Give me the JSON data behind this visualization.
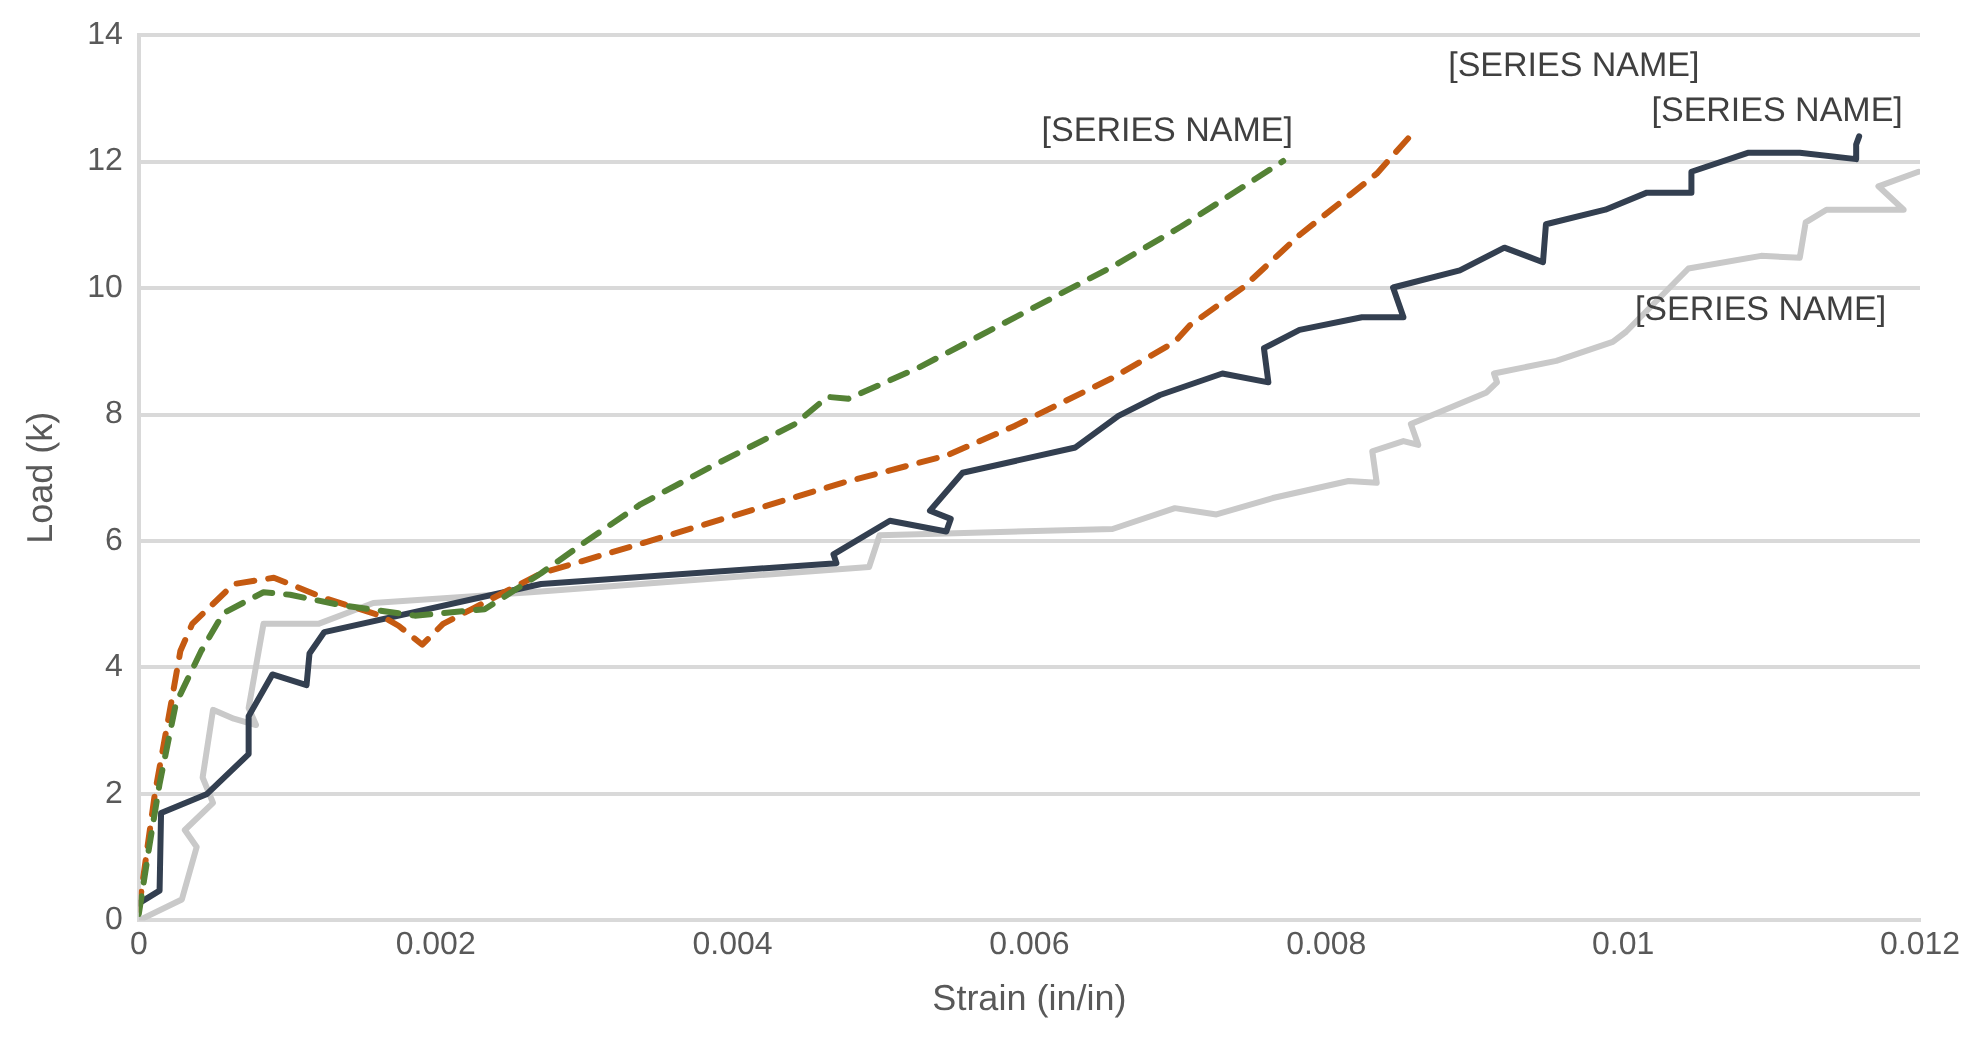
{
  "chart_data": {
    "type": "line",
    "xlabel": "Strain (in/in)",
    "ylabel": "Load (k)",
    "xlim": [
      0,
      0.012
    ],
    "xticks": [
      0,
      0.002,
      0.004,
      0.006,
      0.008,
      0.01,
      0.012
    ],
    "ylim": [
      0,
      14
    ],
    "yticks": [
      0,
      2,
      4,
      6,
      8,
      10,
      12,
      14
    ],
    "grid": "y",
    "legend": false,
    "marker": "none",
    "series": [
      {
        "name": "[SERIES NAME]",
        "color": "#c9c9c9",
        "line_style": "solid",
        "x": [
          0,
          0.00029,
          0.00039,
          0.00031,
          0.0005,
          0.00043,
          0.0005,
          0.00064,
          0.00079,
          0.00074,
          0.00084,
          0.00121,
          0.00158,
          0.00264,
          0.00492,
          0.00499,
          0.00544,
          0.00656,
          0.00698,
          0.00726,
          0.00764,
          0.00815,
          0.00834,
          0.00831,
          0.00852,
          0.00862,
          0.00857,
          0.00908,
          0.00915,
          0.00913,
          0.00955,
          0.00993,
          0.01002,
          0.01044,
          0.01093,
          0.01119,
          0.01123,
          0.01137,
          0.01189,
          0.01172,
          0.01199
        ],
        "values": [
          0,
          0.33,
          1.16,
          1.43,
          1.86,
          2.26,
          3.33,
          3.19,
          3.09,
          3.36,
          4.69,
          4.69,
          5.02,
          5.19,
          5.59,
          6.09,
          6.12,
          6.19,
          6.52,
          6.42,
          6.68,
          6.95,
          6.92,
          7.42,
          7.58,
          7.52,
          7.85,
          8.35,
          8.51,
          8.65,
          8.85,
          9.15,
          9.31,
          10.31,
          10.51,
          10.48,
          11.04,
          11.24,
          11.24,
          11.61,
          11.84
        ]
      },
      {
        "name": "[SERIES NAME]",
        "color": "#333f50",
        "line_style": "solid",
        "x": [
          0,
          0.00014,
          0.00015,
          0.00046,
          0.00074,
          0.00074,
          0.0009,
          0.00113,
          0.00115,
          0.00125,
          0.00271,
          0.0047,
          0.00468,
          0.00506,
          0.00544,
          0.00547,
          0.00533,
          0.00555,
          0.00631,
          0.0066,
          0.00688,
          0.0073,
          0.00761,
          0.00758,
          0.00782,
          0.00824,
          0.00852,
          0.00845,
          0.0089,
          0.0092,
          0.00946,
          0.00948,
          0.00988,
          0.01016,
          0.01046,
          0.01046,
          0.01084,
          0.01119,
          0.01157,
          0.01157,
          0.01159
        ],
        "values": [
          0.27,
          0.47,
          1.7,
          2,
          2.63,
          3.23,
          3.89,
          3.72,
          4.22,
          4.56,
          5.32,
          5.65,
          5.79,
          6.32,
          6.15,
          6.35,
          6.48,
          7.08,
          7.48,
          7.98,
          8.31,
          8.65,
          8.51,
          9.05,
          9.34,
          9.54,
          9.54,
          10.01,
          10.28,
          10.64,
          10.41,
          11.01,
          11.24,
          11.51,
          11.51,
          11.84,
          12.14,
          12.14,
          12.04,
          12.27,
          12.4
        ]
      },
      {
        "name": "[SERIES NAME]",
        "color": "#c55a11",
        "line_style": "dashed",
        "x": [
          0,
          0.00011,
          0.00021,
          0.00028,
          0.00036,
          0.00064,
          0.00091,
          0.00126,
          0.00163,
          0.00175,
          0.00191,
          0.00205,
          0.00224,
          0.00271,
          0.00357,
          0.00474,
          0.00544,
          0.0059,
          0.00656,
          0.00698,
          0.00708,
          0.00744,
          0.00782,
          0.00834,
          0.00859
        ],
        "values": [
          0.17,
          2.03,
          3.33,
          4.26,
          4.69,
          5.32,
          5.42,
          5.09,
          4.82,
          4.66,
          4.36,
          4.69,
          4.92,
          5.49,
          6.09,
          6.92,
          7.35,
          7.82,
          8.58,
          9.15,
          9.41,
          10.01,
          10.84,
          11.81,
          12.47
        ]
      },
      {
        "name": "[SERIES NAME]",
        "color": "#548235",
        "line_style": "dashed",
        "x": [
          0,
          7e-05,
          0.00014,
          0.00025,
          0.00042,
          0.00057,
          0.00084,
          0.00102,
          0.00135,
          0.00186,
          0.00233,
          0.00271,
          0.00301,
          0.00338,
          0.00386,
          0.00442,
          0.00464,
          0.00478,
          0.00526,
          0.00656,
          0.00702,
          0.00771
        ],
        "values": [
          0.1,
          1.16,
          2.16,
          3.43,
          4.26,
          4.86,
          5.19,
          5.15,
          4.99,
          4.82,
          4.92,
          5.49,
          5.99,
          6.58,
          7.18,
          7.85,
          8.28,
          8.25,
          8.75,
          10.34,
          10.97,
          12.01
        ]
      }
    ]
  }
}
